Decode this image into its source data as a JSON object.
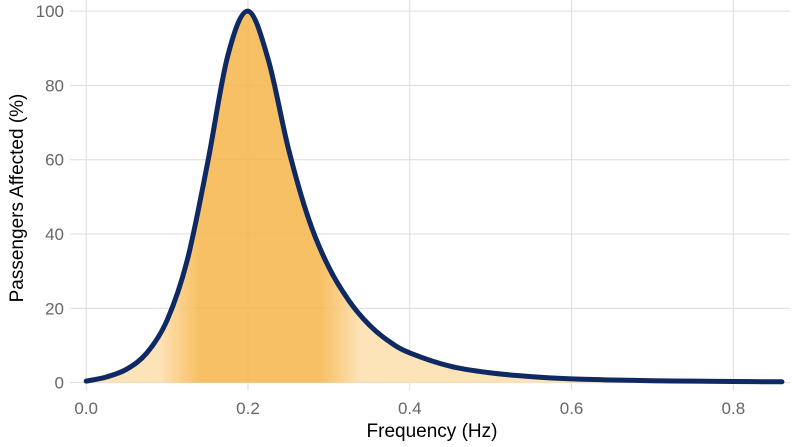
{
  "chart_data": {
    "type": "area",
    "title": "",
    "xlabel": "Frequency (Hz)",
    "ylabel": "Passengers Affected (%)",
    "xlim": [
      -0.02,
      0.87
    ],
    "ylim": [
      -2,
      103
    ],
    "x_ticks": [
      0.0,
      0.2,
      0.4,
      0.6,
      0.8
    ],
    "x_tick_labels": [
      "0.0",
      "0.2",
      "0.4",
      "0.6",
      "0.8"
    ],
    "y_ticks": [
      0,
      20,
      40,
      60,
      80,
      100
    ],
    "y_tick_labels": [
      "0",
      "20",
      "40",
      "60",
      "80",
      "100"
    ],
    "grid": true,
    "legend": "none",
    "line_color": "#0f2a63",
    "fill_color": "#f7b54a",
    "fill_light_color": "#fde3b8",
    "series": [
      {
        "x": [
          0.0,
          0.025,
          0.05,
          0.075,
          0.1,
          0.125,
          0.15,
          0.175,
          0.2,
          0.225,
          0.25,
          0.275,
          0.3,
          0.325,
          0.35,
          0.375,
          0.4,
          0.45,
          0.5,
          0.55,
          0.6,
          0.65,
          0.7,
          0.75,
          0.8,
          0.86
        ],
        "values": [
          0.4,
          1.5,
          3.6,
          8.0,
          16.8,
          33.0,
          59.0,
          88.0,
          100.0,
          87.0,
          63.0,
          44.0,
          31.0,
          22.0,
          15.5,
          11.0,
          8.0,
          4.4,
          2.6,
          1.6,
          1.0,
          0.7,
          0.5,
          0.4,
          0.3,
          0.2
        ]
      }
    ]
  }
}
